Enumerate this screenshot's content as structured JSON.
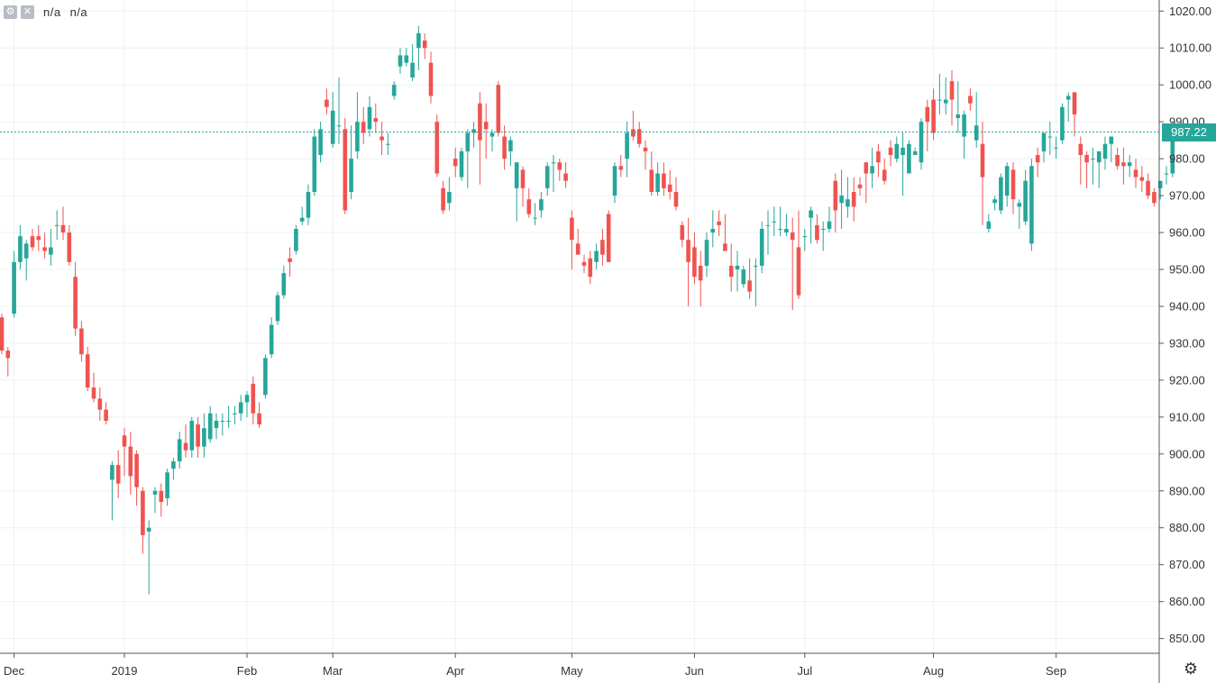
{
  "toolbar": {
    "settings_icon": "gear-icon",
    "close_icon": "close-icon",
    "symbol_label": "n/a",
    "interval_label": "n/a"
  },
  "last_price": {
    "value": 987.22,
    "label": "987.22"
  },
  "colors": {
    "up": "#26a69a",
    "down": "#ef5350",
    "grid": "#eef0f3",
    "axis": "#555555"
  },
  "chart_data": {
    "type": "candlestick",
    "ylim": [
      846,
      1023
    ],
    "y_ticks": [
      1020,
      1010,
      1000,
      990,
      980,
      970,
      960,
      950,
      940,
      930,
      920,
      910,
      900,
      890,
      880,
      870,
      860,
      850
    ],
    "y_tick_labels": [
      "1020.00",
      "1010.00",
      "1000.00",
      "990.00",
      "980.00",
      "970.00",
      "960.00",
      "950.00",
      "940.00",
      "930.00",
      "920.00",
      "910.00",
      "900.00",
      "890.00",
      "880.00",
      "870.00",
      "860.00",
      "850.00"
    ],
    "x_labels": [
      "Dec",
      "2019",
      "Feb",
      "Mar",
      "Apr",
      "May",
      "Jun",
      "Jul",
      "Aug",
      "Sep"
    ],
    "x_label_index": [
      2,
      20,
      40,
      54,
      74,
      93,
      113,
      131,
      152,
      172
    ],
    "grid": true,
    "candles": [
      [
        937,
        938,
        927,
        928
      ],
      [
        928,
        929,
        921,
        926
      ],
      [
        938,
        955,
        937,
        952
      ],
      [
        952,
        962,
        950,
        959
      ],
      [
        953,
        958,
        947,
        957
      ],
      [
        959,
        961,
        955,
        956
      ],
      [
        959,
        962,
        955,
        958
      ],
      [
        956,
        960,
        953,
        955
      ],
      [
        954,
        961,
        951,
        956
      ],
      [
        962,
        966,
        958,
        962
      ],
      [
        962,
        967,
        958,
        960
      ],
      [
        960,
        962,
        951,
        952
      ],
      [
        948,
        952,
        932,
        934
      ],
      [
        934,
        936,
        925,
        927
      ],
      [
        927,
        929,
        917,
        918
      ],
      [
        918,
        922,
        914,
        915
      ],
      [
        915,
        918,
        909,
        912
      ],
      [
        912,
        914,
        908,
        909
      ],
      [
        893,
        898,
        882,
        897
      ],
      [
        897,
        901,
        888,
        892
      ],
      [
        905,
        907,
        894,
        902
      ],
      [
        902,
        906,
        889,
        894
      ],
      [
        900,
        901,
        886,
        891
      ],
      [
        890,
        891,
        873,
        878
      ],
      [
        879,
        882,
        862,
        880
      ],
      [
        889,
        891,
        884,
        890
      ],
      [
        890,
        892,
        883,
        887
      ],
      [
        888,
        896,
        886,
        895
      ],
      [
        896,
        899,
        893,
        898
      ],
      [
        898,
        906,
        896,
        904
      ],
      [
        903,
        908,
        899,
        901
      ],
      [
        901,
        910,
        899,
        909
      ],
      [
        908,
        910,
        899,
        902
      ],
      [
        902,
        911,
        899,
        907
      ],
      [
        904,
        913,
        903,
        911
      ],
      [
        907,
        911,
        904,
        909
      ],
      [
        909,
        911,
        905,
        909
      ],
      [
        909,
        913,
        907,
        909
      ],
      [
        911,
        913,
        908,
        911
      ],
      [
        911,
        916,
        909,
        914
      ],
      [
        914,
        917,
        910,
        916
      ],
      [
        919,
        921,
        908,
        911
      ],
      [
        911,
        914,
        907,
        908
      ],
      [
        916,
        927,
        915,
        926
      ],
      [
        927,
        937,
        926,
        935
      ],
      [
        936,
        944,
        935,
        943
      ],
      [
        943,
        951,
        942,
        949
      ],
      [
        953,
        956,
        948,
        952
      ],
      [
        955,
        962,
        954,
        961
      ],
      [
        963,
        967,
        962,
        964
      ],
      [
        964,
        973,
        962,
        971
      ],
      [
        971,
        988,
        970,
        986
      ],
      [
        981,
        990,
        979,
        988
      ],
      [
        996,
        999,
        992,
        994
      ],
      [
        984,
        998,
        983,
        993
      ],
      [
        989,
        1002,
        984,
        989
      ],
      [
        988,
        991,
        965,
        966
      ],
      [
        971,
        989,
        969,
        980
      ],
      [
        982,
        998,
        980,
        990
      ],
      [
        990,
        994,
        984,
        987
      ],
      [
        988,
        997,
        986,
        994
      ],
      [
        991,
        995,
        987,
        990
      ],
      [
        986,
        990,
        981,
        985
      ],
      [
        984,
        987,
        981,
        984
      ],
      [
        997,
        1001,
        996,
        1000
      ],
      [
        1005,
        1010,
        1003,
        1008
      ],
      [
        1006,
        1010,
        1005,
        1008
      ],
      [
        1002,
        1011,
        1001,
        1006
      ],
      [
        1010,
        1016,
        1004,
        1014
      ],
      [
        1012,
        1014,
        1007,
        1010
      ],
      [
        1006,
        1009,
        995,
        997
      ],
      [
        990,
        992,
        975,
        976
      ],
      [
        972,
        974,
        965,
        966
      ],
      [
        968,
        975,
        966,
        971
      ],
      [
        980,
        983,
        975,
        978
      ],
      [
        975,
        983,
        974,
        982
      ],
      [
        982,
        988,
        972,
        987
      ],
      [
        987,
        990,
        983,
        988
      ],
      [
        995,
        998,
        973,
        985
      ],
      [
        990,
        995,
        980,
        988
      ],
      [
        986,
        988,
        982,
        987
      ],
      [
        1000,
        1001,
        986,
        987
      ],
      [
        986,
        989,
        977,
        980
      ],
      [
        982,
        986,
        978,
        985
      ],
      [
        972,
        979,
        963,
        979
      ],
      [
        977,
        978,
        967,
        972
      ],
      [
        969,
        972,
        964,
        965
      ],
      [
        964,
        968,
        962,
        964
      ],
      [
        966,
        971,
        964,
        969
      ],
      [
        972,
        979,
        970,
        978
      ],
      [
        979,
        981,
        971,
        979
      ],
      [
        979,
        980,
        974,
        977
      ],
      [
        976,
        979,
        972,
        974
      ],
      [
        964,
        966,
        950,
        958
      ],
      [
        957,
        961,
        954,
        954
      ],
      [
        952,
        954,
        949,
        951
      ],
      [
        953,
        955,
        946,
        948
      ],
      [
        952,
        957,
        950,
        955
      ],
      [
        958,
        961,
        951,
        954
      ],
      [
        965,
        966,
        952,
        952
      ],
      [
        970,
        979,
        968,
        978
      ],
      [
        978,
        981,
        975,
        977
      ],
      [
        980,
        990,
        975,
        987
      ],
      [
        988,
        993,
        985,
        986
      ],
      [
        988,
        990,
        983,
        984
      ],
      [
        983,
        985,
        977,
        982
      ],
      [
        977,
        982,
        970,
        971
      ],
      [
        971,
        979,
        970,
        976
      ],
      [
        976,
        979,
        970,
        972
      ],
      [
        973,
        977,
        969,
        971
      ],
      [
        971,
        975,
        966,
        967
      ],
      [
        962,
        963,
        956,
        958
      ],
      [
        958,
        964,
        940,
        952
      ],
      [
        956,
        960,
        946,
        948
      ],
      [
        951,
        955,
        940,
        947
      ],
      [
        951,
        960,
        948,
        958
      ],
      [
        960,
        966,
        956,
        961
      ],
      [
        963,
        966,
        959,
        962
      ],
      [
        957,
        965,
        955,
        955
      ],
      [
        951,
        957,
        944,
        948
      ],
      [
        950,
        955,
        944,
        951
      ],
      [
        946,
        951,
        945,
        950
      ],
      [
        947,
        953,
        942,
        944
      ],
      [
        951,
        953,
        940,
        951
      ],
      [
        951,
        963,
        949,
        961
      ],
      [
        962,
        966,
        954,
        962
      ],
      [
        963,
        967,
        959,
        963
      ],
      [
        961,
        967,
        959,
        961
      ],
      [
        960,
        965,
        959,
        961
      ],
      [
        960,
        964,
        939,
        958
      ],
      [
        956,
        966,
        942,
        943
      ],
      [
        959,
        961,
        955,
        959
      ],
      [
        964,
        967,
        957,
        966
      ],
      [
        962,
        965,
        957,
        958
      ],
      [
        961,
        963,
        955,
        961
      ],
      [
        961,
        967,
        960,
        963
      ],
      [
        974,
        976,
        960,
        966
      ],
      [
        968,
        977,
        961,
        970
      ],
      [
        967,
        975,
        964,
        969
      ],
      [
        971,
        975,
        963,
        967
      ],
      [
        973,
        975,
        970,
        972
      ],
      [
        979,
        979,
        968,
        976
      ],
      [
        976,
        983,
        972,
        978
      ],
      [
        982,
        984,
        975,
        979
      ],
      [
        977,
        980,
        973,
        974
      ],
      [
        983,
        985,
        978,
        981
      ],
      [
        980,
        986,
        979,
        984
      ],
      [
        981,
        987,
        970,
        983
      ],
      [
        976,
        985,
        976,
        984
      ],
      [
        981,
        983,
        981,
        982
      ],
      [
        979,
        991,
        977,
        990
      ],
      [
        994,
        996,
        982,
        990
      ],
      [
        996,
        999,
        985,
        987
      ],
      [
        996,
        1003,
        992,
        996
      ],
      [
        995,
        1002,
        992,
        996
      ],
      [
        1001,
        1004,
        989,
        996
      ],
      [
        991,
        1001,
        987,
        992
      ],
      [
        986,
        993,
        980,
        992
      ],
      [
        997,
        999,
        993,
        995
      ],
      [
        985,
        998,
        983,
        989
      ],
      [
        984,
        990,
        962,
        975
      ],
      [
        961,
        965,
        960,
        963
      ],
      [
        968,
        970,
        966,
        969
      ],
      [
        966,
        976,
        965,
        975
      ],
      [
        970,
        979,
        967,
        978
      ],
      [
        977,
        979,
        965,
        969
      ],
      [
        967,
        969,
        961,
        968
      ],
      [
        963,
        977,
        962,
        974
      ],
      [
        957,
        980,
        955,
        978
      ],
      [
        981,
        983,
        975,
        979
      ],
      [
        982,
        987,
        979,
        987
      ],
      [
        986,
        990,
        981,
        986
      ],
      [
        983,
        986,
        980,
        983
      ],
      [
        985,
        995,
        984,
        994
      ],
      [
        996,
        998,
        990,
        997
      ],
      [
        998,
        998,
        986,
        992
      ],
      [
        984,
        986,
        973,
        981
      ],
      [
        981,
        982,
        972,
        979
      ],
      [
        980,
        983,
        973,
        980
      ],
      [
        979,
        981,
        972,
        982
      ],
      [
        980,
        986,
        977,
        984
      ],
      [
        984,
        986,
        979,
        986
      ],
      [
        981,
        983,
        977,
        978
      ],
      [
        979,
        983,
        973,
        978
      ],
      [
        978,
        981,
        975,
        979
      ],
      [
        977,
        980,
        972,
        975
      ],
      [
        975,
        978,
        971,
        974
      ],
      [
        974,
        976,
        969,
        970
      ],
      [
        971,
        972,
        967,
        968
      ],
      [
        972,
        974,
        969,
        974
      ],
      [
        976,
        978,
        973,
        976
      ],
      [
        976,
        990,
        975,
        987
      ]
    ]
  }
}
